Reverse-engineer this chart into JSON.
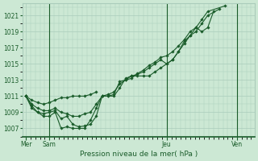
{
  "title": "",
  "xlabel": "Pression niveau de la mer( hPa )",
  "background_color": "#cce8d4",
  "grid_color": "#aaccbb",
  "line_color": "#1a5c2a",
  "ylim": [
    1006,
    1022.5
  ],
  "yticks": [
    1007,
    1009,
    1011,
    1013,
    1015,
    1017,
    1019,
    1021
  ],
  "xlim": [
    -0.3,
    19.5
  ],
  "day_positions": [
    0,
    2,
    12,
    18
  ],
  "day_labels": [
    "Mer",
    "Sam",
    "Jeu",
    "Ven"
  ],
  "vline_positions": [
    2,
    12,
    18
  ],
  "series": [
    {
      "x": [
        0,
        0.5,
        1.0,
        1.5,
        2.0,
        2.5,
        3.0,
        3.5,
        4.0,
        4.5,
        5.0,
        5.5,
        6.0,
        6.5,
        7.0,
        7.5,
        8.0,
        8.5,
        9.0,
        9.5,
        10.0,
        10.5,
        11.0,
        11.5,
        12.0,
        12.5,
        13.0,
        13.5,
        14.0,
        14.5,
        15.0,
        15.5,
        16.0
      ],
      "y": [
        1011.0,
        1009.8,
        1009.0,
        1008.5,
        1008.5,
        1009.0,
        1007.0,
        1007.2,
        1007.0,
        1007.0,
        1007.0,
        1008.0,
        1009.5,
        1011.0,
        1011.0,
        1011.0,
        1012.0,
        1013.2,
        1013.5,
        1013.5,
        1013.5,
        1013.5,
        1014.0,
        1014.5,
        1015.0,
        1015.5,
        1016.5,
        1017.5,
        1018.5,
        1019.5,
        1019.0,
        1019.5,
        1021.5
      ]
    },
    {
      "x": [
        0,
        0.5,
        1.0,
        1.5,
        2.0,
        2.5,
        3.0,
        3.5,
        4.0,
        4.5,
        5.0,
        5.5,
        6.0,
        6.5,
        7.0,
        7.5,
        8.0,
        8.5,
        9.0,
        9.5,
        10.0,
        10.5,
        11.0,
        11.5,
        12.0,
        12.5,
        13.0,
        13.5,
        14.0,
        14.5,
        15.0,
        15.5,
        16.5
      ],
      "y": [
        1011.0,
        1009.5,
        1009.0,
        1008.8,
        1009.0,
        1009.2,
        1008.2,
        1008.5,
        1007.5,
        1007.2,
        1007.3,
        1007.5,
        1008.5,
        1011.0,
        1011.0,
        1011.2,
        1012.8,
        1013.0,
        1013.5,
        1013.7,
        1014.0,
        1014.5,
        1015.0,
        1015.5,
        1015.0,
        1015.5,
        1016.5,
        1017.8,
        1018.5,
        1019.0,
        1020.0,
        1021.0,
        1021.8
      ]
    },
    {
      "x": [
        0,
        0.5,
        1.0,
        1.5,
        2.0,
        2.5,
        3.0,
        3.5,
        4.0,
        4.5,
        5.0,
        5.5,
        6.0,
        6.5,
        7.0,
        7.5,
        8.0,
        8.5,
        9.0,
        9.5,
        10.0,
        10.5,
        11.0,
        11.5,
        12.0,
        12.5,
        13.0,
        13.5,
        14.0,
        14.5,
        15.0,
        15.5,
        17.0
      ],
      "y": [
        1011.0,
        1010.0,
        1009.5,
        1009.2,
        1009.2,
        1009.5,
        1009.0,
        1008.8,
        1008.5,
        1008.5,
        1008.8,
        1009.0,
        1010.0,
        1011.0,
        1011.2,
        1011.5,
        1012.5,
        1013.0,
        1013.2,
        1013.8,
        1014.2,
        1014.8,
        1015.2,
        1015.8,
        1016.0,
        1016.5,
        1017.2,
        1018.0,
        1019.0,
        1019.5,
        1020.5,
        1021.5,
        1022.2
      ]
    },
    {
      "x": [
        0,
        0.5,
        1.0,
        1.5,
        2.0,
        2.5,
        3.0,
        3.5,
        4.0,
        4.5,
        5.0,
        5.5,
        6.0
      ],
      "y": [
        1011.0,
        1010.5,
        1010.2,
        1010.0,
        1010.2,
        1010.5,
        1010.8,
        1010.8,
        1011.0,
        1011.0,
        1011.0,
        1011.2,
        1011.5
      ]
    }
  ]
}
